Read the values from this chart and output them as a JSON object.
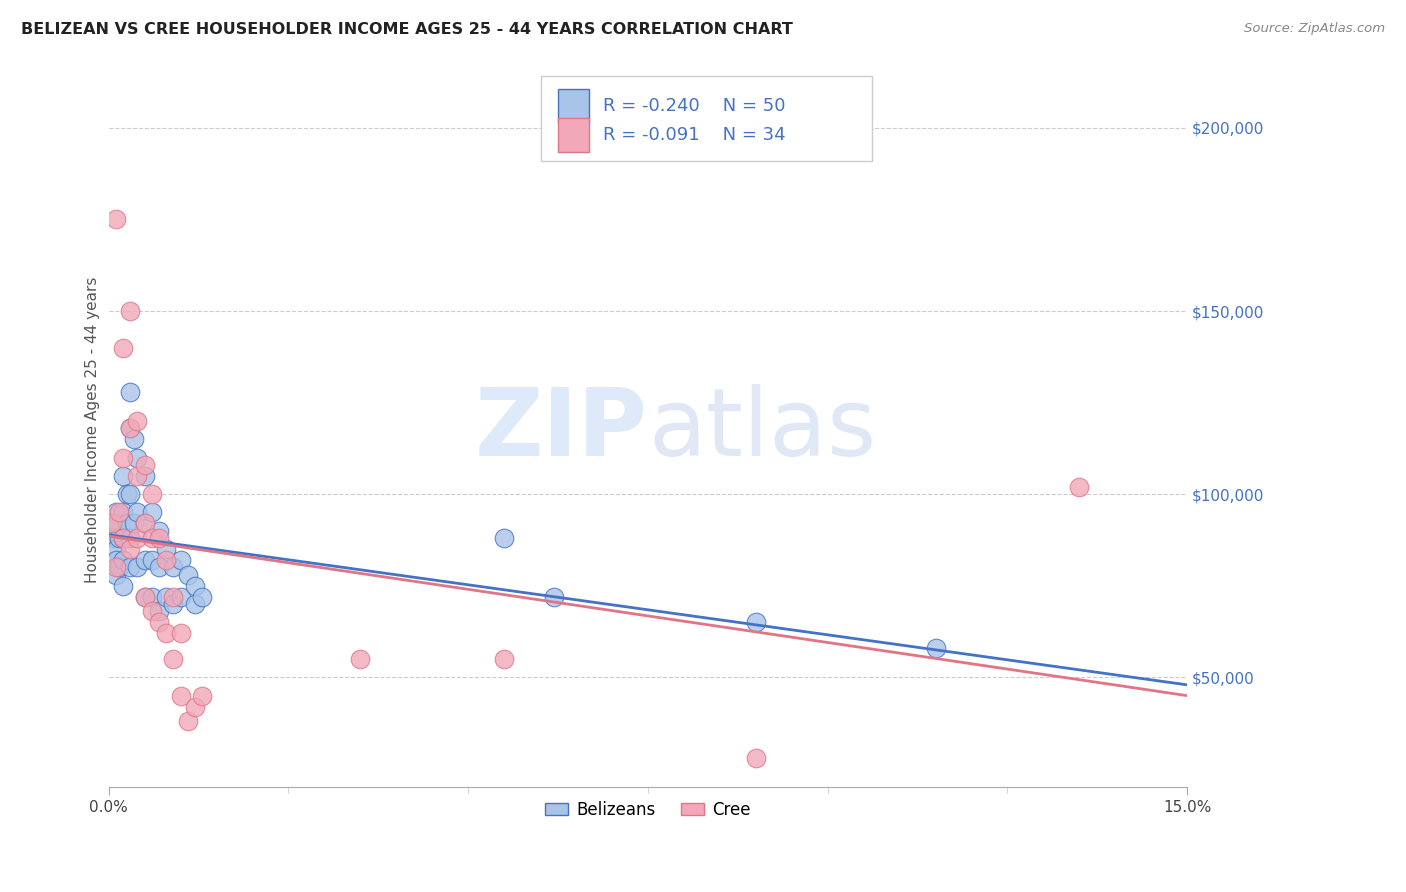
{
  "title": "BELIZEAN VS CREE HOUSEHOLDER INCOME AGES 25 - 44 YEARS CORRELATION CHART",
  "source": "Source: ZipAtlas.com",
  "ylabel_label": "Householder Income Ages 25 - 44 years",
  "ylabel_values": [
    50000,
    100000,
    150000,
    200000
  ],
  "xmin": 0.0,
  "xmax": 0.15,
  "ymin": 20000,
  "ymax": 215000,
  "legend_blue_r": "-0.240",
  "legend_blue_n": "50",
  "legend_pink_r": "-0.091",
  "legend_pink_n": "34",
  "legend_blue_label": "Belizeans",
  "legend_pink_label": "Cree",
  "color_blue": "#a8c4e8",
  "color_pink": "#f2a8b8",
  "color_blue_line": "#4472c4",
  "color_pink_line": "#e07585",
  "watermark_zip": "ZIP",
  "watermark_atlas": "atlas",
  "blue_x": [
    0.0005,
    0.0008,
    0.001,
    0.001,
    0.001,
    0.001,
    0.0012,
    0.0015,
    0.0015,
    0.002,
    0.002,
    0.002,
    0.002,
    0.002,
    0.0025,
    0.0025,
    0.003,
    0.003,
    0.003,
    0.003,
    0.003,
    0.0035,
    0.0035,
    0.004,
    0.004,
    0.004,
    0.005,
    0.005,
    0.005,
    0.005,
    0.006,
    0.006,
    0.006,
    0.007,
    0.007,
    0.007,
    0.008,
    0.008,
    0.009,
    0.009,
    0.01,
    0.01,
    0.011,
    0.012,
    0.012,
    0.013,
    0.055,
    0.062,
    0.09,
    0.115
  ],
  "blue_y": [
    90000,
    88000,
    95000,
    85000,
    82000,
    78000,
    92000,
    88000,
    80000,
    105000,
    95000,
    88000,
    82000,
    75000,
    100000,
    92000,
    128000,
    118000,
    100000,
    88000,
    80000,
    115000,
    92000,
    110000,
    95000,
    80000,
    105000,
    92000,
    82000,
    72000,
    95000,
    82000,
    72000,
    90000,
    80000,
    68000,
    85000,
    72000,
    80000,
    70000,
    82000,
    72000,
    78000,
    75000,
    70000,
    72000,
    88000,
    72000,
    65000,
    58000
  ],
  "pink_x": [
    0.0005,
    0.001,
    0.001,
    0.0015,
    0.002,
    0.002,
    0.002,
    0.003,
    0.003,
    0.003,
    0.004,
    0.004,
    0.004,
    0.005,
    0.005,
    0.005,
    0.006,
    0.006,
    0.006,
    0.007,
    0.007,
    0.008,
    0.008,
    0.009,
    0.009,
    0.01,
    0.01,
    0.011,
    0.012,
    0.013,
    0.035,
    0.055,
    0.09,
    0.135
  ],
  "pink_y": [
    92000,
    175000,
    80000,
    95000,
    140000,
    110000,
    88000,
    150000,
    118000,
    85000,
    120000,
    105000,
    88000,
    108000,
    92000,
    72000,
    100000,
    88000,
    68000,
    88000,
    65000,
    82000,
    62000,
    72000,
    55000,
    62000,
    45000,
    38000,
    42000,
    45000,
    55000,
    55000,
    28000,
    102000
  ]
}
